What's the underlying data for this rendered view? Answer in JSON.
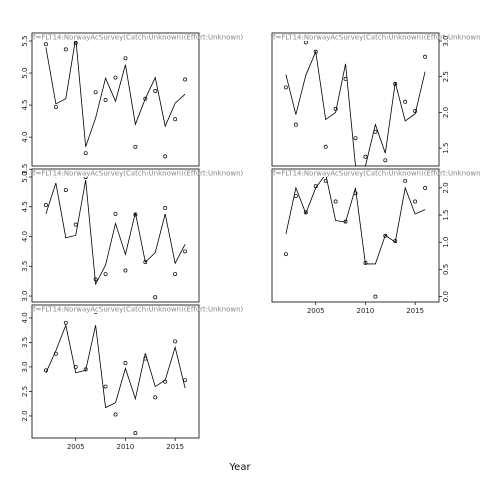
{
  "chart_data": {
    "type": "scatter",
    "xlabel": "Year",
    "panels": [
      {
        "label": "f=FLT14:NorwayAcSurvey(Catch:Unknown)(Effort:Unknown)",
        "position": "top-left",
        "ylim": [
          3.55,
          5.5
        ],
        "yticks": [
          "3.5",
          "4.0",
          "4.5",
          "5.0",
          "5.5"
        ],
        "observed": {
          "x": [
            2002,
            2003,
            2004,
            2005,
            2006,
            2007,
            2008,
            2009,
            2010,
            2011,
            2012,
            2013,
            2014,
            2015,
            2016
          ],
          "y": [
            5.45,
            4.47,
            5.37,
            5.47,
            3.75,
            4.7,
            4.58,
            4.93,
            5.23,
            3.85,
            4.6,
            4.72,
            3.7,
            4.28,
            4.9
          ]
        },
        "fitted": {
          "x": [
            2002,
            2003,
            2004,
            2005,
            2006,
            2007,
            2008,
            2009,
            2010,
            2011,
            2012,
            2013,
            2014,
            2015,
            2016
          ],
          "y": [
            5.4,
            4.52,
            4.6,
            5.55,
            3.85,
            4.3,
            4.92,
            4.56,
            5.13,
            4.2,
            4.6,
            4.93,
            4.17,
            4.53,
            4.67
          ]
        }
      },
      {
        "label": "f=FLT14:NorwayAcSurvey(Catch:Unknown)(Effort:Unknown)",
        "position": "top-right",
        "ylim": [
          1.25,
          3.0
        ],
        "yticks": [
          "1.5",
          "2.0",
          "2.5",
          "3.0"
        ],
        "observed": {
          "x": [
            2002,
            2003,
            2004,
            2005,
            2006,
            2007,
            2008,
            2009,
            2010,
            2011,
            2012,
            2013,
            2014,
            2015,
            2016
          ],
          "y": [
            2.35,
            1.83,
            2.98,
            2.85,
            1.52,
            2.05,
            2.47,
            1.64,
            1.38,
            1.73,
            1.33,
            2.4,
            2.15,
            2.02,
            2.78
          ]
        },
        "fitted": {
          "x": [
            2002,
            2003,
            2004,
            2005,
            2006,
            2007,
            2008,
            2009,
            2010,
            2011,
            2012,
            2013,
            2014,
            2015,
            2016
          ],
          "y": [
            2.53,
            1.97,
            2.52,
            2.85,
            1.9,
            2.0,
            2.68,
            1.25,
            1.25,
            1.83,
            1.43,
            2.42,
            1.88,
            1.98,
            2.57
          ]
        }
      },
      {
        "label": "f=FLT14:NorwayAcSurvey(Catch:Unknown)(Effort:Unknown)",
        "position": "middle-left",
        "ylim": [
          2.9,
          5.0
        ],
        "yticks": [
          "3.0",
          "3.5",
          "4.0",
          "4.5",
          "5.0"
        ],
        "observed": {
          "x": [
            2002,
            2003,
            2004,
            2005,
            2006,
            2007,
            2008,
            2009,
            2010,
            2011,
            2012,
            2013,
            2014,
            2015,
            2016
          ],
          "y": [
            4.53,
            5.03,
            4.78,
            4.2,
            5.0,
            3.28,
            3.37,
            4.38,
            3.43,
            4.37,
            3.57,
            2.98,
            4.48,
            3.37,
            3.75
          ]
        },
        "fitted": {
          "x": [
            2002,
            2003,
            2004,
            2005,
            2006,
            2007,
            2008,
            2009,
            2010,
            2011,
            2012,
            2013,
            2014,
            2015,
            2016
          ],
          "y": [
            4.38,
            4.9,
            3.98,
            4.02,
            4.95,
            3.2,
            3.52,
            4.22,
            3.7,
            4.4,
            3.57,
            3.73,
            4.38,
            3.55,
            3.87
          ]
        }
      },
      {
        "label": "f=FLT14:NorwayAcSurvey(Catch:Unknown)(Effort:Unknown)",
        "position": "middle-right",
        "ylim": [
          -0.1,
          2.2
        ],
        "yticks": [
          "0.0",
          "0.5",
          "1.0",
          "1.5",
          "2.0"
        ],
        "observed": {
          "x": [
            2002,
            2003,
            2004,
            2005,
            2006,
            2007,
            2008,
            2009,
            2010,
            2011,
            2012,
            2013,
            2014,
            2015,
            2016
          ],
          "y": [
            0.78,
            1.85,
            1.55,
            2.03,
            2.13,
            1.75,
            1.38,
            1.9,
            0.62,
            0.0,
            1.12,
            1.02,
            2.13,
            1.75,
            2.0
          ]
        },
        "fitted": {
          "x": [
            2002,
            2003,
            2004,
            2005,
            2006,
            2007,
            2008,
            2009,
            2010,
            2011,
            2012,
            2013,
            2014,
            2015,
            2016
          ],
          "y": [
            1.15,
            2.0,
            1.53,
            2.0,
            2.25,
            1.4,
            1.37,
            2.0,
            0.6,
            0.6,
            1.13,
            1.0,
            2.0,
            1.52,
            1.6
          ]
        }
      },
      {
        "label": "f=FLT14:NorwayAcSurvey(Catch:Unknown)(Effort:Unknown)",
        "position": "bottom-left",
        "ylim": [
          1.55,
          4.1
        ],
        "yticks": [
          "2.0",
          "2.5",
          "3.0",
          "3.5",
          "4.0"
        ],
        "observed": {
          "x": [
            2002,
            2003,
            2004,
            2005,
            2006,
            2007,
            2008,
            2009,
            2010,
            2011,
            2012,
            2013,
            2014,
            2015,
            2016
          ],
          "y": [
            2.93,
            3.27,
            3.9,
            3.0,
            2.95,
            4.12,
            2.6,
            2.03,
            3.08,
            1.65,
            3.17,
            2.38,
            2.7,
            3.52,
            2.73
          ]
        },
        "fitted": {
          "x": [
            2002,
            2003,
            2004,
            2005,
            2006,
            2007,
            2008,
            2009,
            2010,
            2011,
            2012,
            2013,
            2014,
            2015,
            2016
          ],
          "y": [
            2.88,
            3.33,
            3.85,
            2.88,
            2.93,
            3.85,
            2.17,
            2.27,
            2.97,
            2.35,
            3.28,
            2.6,
            2.73,
            3.4,
            2.57
          ]
        }
      }
    ],
    "xlim": [
      2000.6,
      2017.4
    ],
    "xticks": [
      2005,
      2010,
      2015
    ],
    "xtick_labels": [
      "2005",
      "2010",
      "2015"
    ],
    "grid": false,
    "legend": "none"
  }
}
